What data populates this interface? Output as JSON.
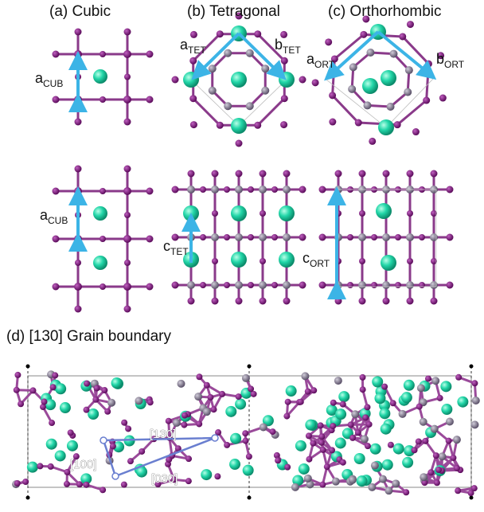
{
  "panels": [
    {
      "label": "(a) Cubic"
    },
    {
      "label": "(b) Tetragonal"
    },
    {
      "label": "(c) Orthorhombic"
    },
    {
      "label": "(d) [130] Grain boundary"
    }
  ],
  "vectors": [
    {
      "main": "a",
      "sub": "CUB"
    },
    {
      "main": "a",
      "sub": "CUB"
    },
    {
      "main": "a",
      "sub": "TET"
    },
    {
      "main": "b",
      "sub": "TET"
    },
    {
      "main": "c",
      "sub": "TET"
    },
    {
      "main": "a",
      "sub": "ORT"
    },
    {
      "main": "b",
      "sub": "ORT"
    },
    {
      "main": "c",
      "sub": "ORT"
    }
  ],
  "directions": [
    "[130]",
    "[100]",
    "[030]"
  ]
}
